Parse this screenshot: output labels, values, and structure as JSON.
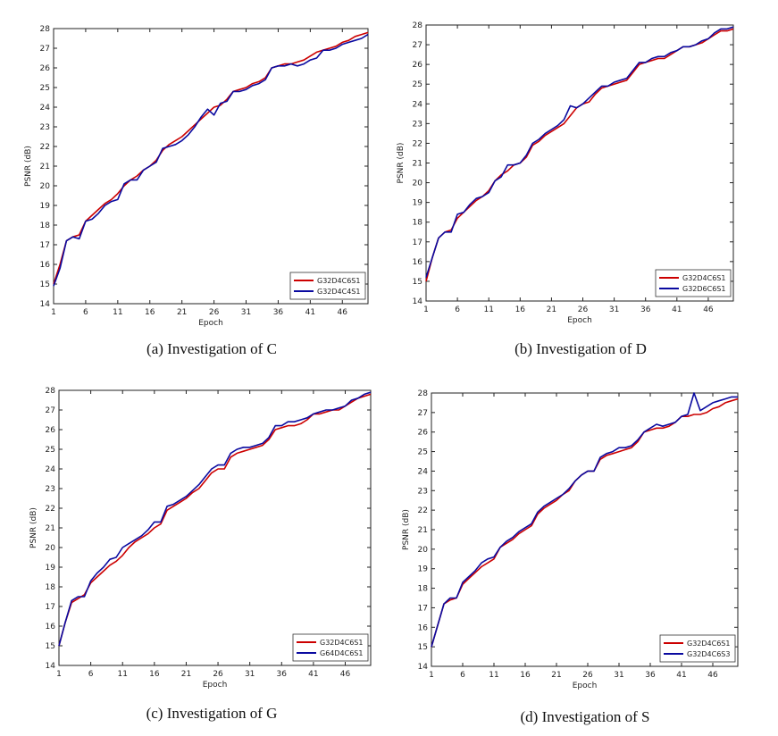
{
  "chart_data": [
    {
      "type": "line",
      "caption": "(a) Investigation of C",
      "xlabel": "Epoch",
      "ylabel": "PSNR (dB)",
      "xlim": [
        1,
        50
      ],
      "ylim": [
        14,
        28
      ],
      "xticks": [
        1,
        6,
        11,
        16,
        21,
        26,
        31,
        36,
        41,
        46
      ],
      "yticks": [
        14,
        15,
        16,
        17,
        18,
        19,
        20,
        21,
        22,
        23,
        24,
        25,
        26,
        27,
        28
      ],
      "legend_position": "bottom-right",
      "series": [
        {
          "name": "G32D4C6S1",
          "color": "#cc0000",
          "x": [
            1,
            2,
            3,
            4,
            5,
            6,
            7,
            8,
            9,
            10,
            11,
            12,
            13,
            14,
            15,
            16,
            17,
            18,
            19,
            20,
            21,
            22,
            23,
            24,
            25,
            26,
            27,
            28,
            29,
            30,
            31,
            32,
            33,
            34,
            35,
            36,
            37,
            38,
            39,
            40,
            41,
            42,
            43,
            44,
            45,
            46,
            47,
            48,
            49,
            50
          ],
          "y": [
            15.0,
            16.0,
            17.2,
            17.4,
            17.5,
            18.2,
            18.5,
            18.8,
            19.1,
            19.3,
            19.6,
            20.0,
            20.3,
            20.5,
            20.8,
            21.0,
            21.3,
            21.8,
            22.1,
            22.3,
            22.5,
            22.8,
            23.1,
            23.4,
            23.7,
            24.0,
            24.1,
            24.4,
            24.8,
            24.9,
            25.0,
            25.2,
            25.3,
            25.5,
            26.0,
            26.1,
            26.2,
            26.2,
            26.3,
            26.4,
            26.6,
            26.8,
            26.9,
            27.0,
            27.1,
            27.3,
            27.4,
            27.6,
            27.7,
            27.8
          ]
        },
        {
          "name": "G32D4C4S1",
          "color": "#0a0aa0",
          "x": [
            1,
            2,
            3,
            4,
            5,
            6,
            7,
            8,
            9,
            10,
            11,
            12,
            13,
            14,
            15,
            16,
            17,
            18,
            19,
            20,
            21,
            22,
            23,
            24,
            25,
            26,
            27,
            28,
            29,
            30,
            31,
            32,
            33,
            34,
            35,
            36,
            37,
            38,
            39,
            40,
            41,
            42,
            43,
            44,
            45,
            46,
            47,
            48,
            49,
            50
          ],
          "y": [
            14.9,
            15.8,
            17.2,
            17.4,
            17.3,
            18.2,
            18.3,
            18.6,
            19.0,
            19.2,
            19.3,
            20.1,
            20.3,
            20.3,
            20.8,
            21.0,
            21.2,
            21.9,
            22.0,
            22.1,
            22.3,
            22.6,
            23.0,
            23.5,
            23.9,
            23.6,
            24.2,
            24.3,
            24.8,
            24.8,
            24.9,
            25.1,
            25.2,
            25.4,
            26.0,
            26.1,
            26.1,
            26.2,
            26.1,
            26.2,
            26.4,
            26.5,
            26.9,
            26.9,
            27.0,
            27.2,
            27.3,
            27.4,
            27.5,
            27.7
          ]
        }
      ]
    },
    {
      "type": "line",
      "caption": "(b) Investigation of D",
      "xlabel": "Epoch",
      "ylabel": "PSNR (dB)",
      "xlim": [
        1,
        50
      ],
      "ylim": [
        14,
        28
      ],
      "xticks": [
        1,
        6,
        11,
        16,
        21,
        26,
        31,
        36,
        41,
        46
      ],
      "yticks": [
        14,
        15,
        16,
        17,
        18,
        19,
        20,
        21,
        22,
        23,
        24,
        25,
        26,
        27,
        28
      ],
      "legend_position": "bottom-right",
      "series": [
        {
          "name": "G32D4C6S1",
          "color": "#cc0000",
          "x": [
            1,
            2,
            3,
            4,
            5,
            6,
            7,
            8,
            9,
            10,
            11,
            12,
            13,
            14,
            15,
            16,
            17,
            18,
            19,
            20,
            21,
            22,
            23,
            24,
            25,
            26,
            27,
            28,
            29,
            30,
            31,
            32,
            33,
            34,
            35,
            36,
            37,
            38,
            39,
            40,
            41,
            42,
            43,
            44,
            45,
            46,
            47,
            48,
            49,
            50
          ],
          "y": [
            15.0,
            16.2,
            17.2,
            17.5,
            17.6,
            18.2,
            18.5,
            18.8,
            19.1,
            19.3,
            19.6,
            20.1,
            20.4,
            20.6,
            20.9,
            21.0,
            21.3,
            21.9,
            22.1,
            22.4,
            22.6,
            22.8,
            23.0,
            23.4,
            23.8,
            24.0,
            24.1,
            24.5,
            24.8,
            24.9,
            25.0,
            25.1,
            25.2,
            25.6,
            26.0,
            26.1,
            26.2,
            26.3,
            26.3,
            26.5,
            26.7,
            26.9,
            26.9,
            27.0,
            27.1,
            27.3,
            27.5,
            27.7,
            27.7,
            27.8
          ]
        },
        {
          "name": "G32D6C6S1",
          "color": "#0a0aa0",
          "x": [
            1,
            2,
            3,
            4,
            5,
            6,
            7,
            8,
            9,
            10,
            11,
            12,
            13,
            14,
            15,
            16,
            17,
            18,
            19,
            20,
            21,
            22,
            23,
            24,
            25,
            26,
            27,
            28,
            29,
            30,
            31,
            32,
            33,
            34,
            35,
            36,
            37,
            38,
            39,
            40,
            41,
            42,
            43,
            44,
            45,
            46,
            47,
            48,
            49,
            50
          ],
          "y": [
            15.2,
            16.2,
            17.2,
            17.5,
            17.5,
            18.4,
            18.5,
            18.9,
            19.2,
            19.3,
            19.5,
            20.1,
            20.3,
            20.9,
            20.9,
            21.0,
            21.4,
            22.0,
            22.2,
            22.5,
            22.7,
            22.9,
            23.2,
            23.9,
            23.8,
            24.0,
            24.3,
            24.6,
            24.9,
            24.9,
            25.1,
            25.2,
            25.3,
            25.7,
            26.1,
            26.1,
            26.3,
            26.4,
            26.4,
            26.6,
            26.7,
            26.9,
            26.9,
            27.0,
            27.2,
            27.3,
            27.6,
            27.8,
            27.8,
            27.9
          ]
        }
      ]
    },
    {
      "type": "line",
      "caption": "(c) Investigation of G",
      "xlabel": "Epoch",
      "ylabel": "PSNR (dB)",
      "xlim": [
        1,
        50
      ],
      "ylim": [
        14,
        28
      ],
      "xticks": [
        1,
        6,
        11,
        16,
        21,
        26,
        31,
        36,
        41,
        46
      ],
      "yticks": [
        14,
        15,
        16,
        17,
        18,
        19,
        20,
        21,
        22,
        23,
        24,
        25,
        26,
        27,
        28
      ],
      "legend_position": "bottom-right",
      "series": [
        {
          "name": "G32D4C6S1",
          "color": "#cc0000",
          "x": [
            1,
            2,
            3,
            4,
            5,
            6,
            7,
            8,
            9,
            10,
            11,
            12,
            13,
            14,
            15,
            16,
            17,
            18,
            19,
            20,
            21,
            22,
            23,
            24,
            25,
            26,
            27,
            28,
            29,
            30,
            31,
            32,
            33,
            34,
            35,
            36,
            37,
            38,
            39,
            40,
            41,
            42,
            43,
            44,
            45,
            46,
            47,
            48,
            49,
            50
          ],
          "y": [
            15.0,
            16.2,
            17.2,
            17.4,
            17.6,
            18.2,
            18.5,
            18.8,
            19.1,
            19.3,
            19.6,
            20.0,
            20.3,
            20.5,
            20.7,
            21.0,
            21.2,
            21.9,
            22.1,
            22.3,
            22.5,
            22.8,
            23.0,
            23.4,
            23.8,
            24.0,
            24.0,
            24.6,
            24.8,
            24.9,
            25.0,
            25.1,
            25.2,
            25.5,
            26.0,
            26.1,
            26.2,
            26.2,
            26.3,
            26.5,
            26.8,
            26.8,
            26.9,
            27.0,
            27.0,
            27.2,
            27.4,
            27.6,
            27.7,
            27.8
          ]
        },
        {
          "name": "G64D4C6S1",
          "color": "#0a0aa0",
          "x": [
            1,
            2,
            3,
            4,
            5,
            6,
            7,
            8,
            9,
            10,
            11,
            12,
            13,
            14,
            15,
            16,
            17,
            18,
            19,
            20,
            21,
            22,
            23,
            24,
            25,
            26,
            27,
            28,
            29,
            30,
            31,
            32,
            33,
            34,
            35,
            36,
            37,
            38,
            39,
            40,
            41,
            42,
            43,
            44,
            45,
            46,
            47,
            48,
            49,
            50
          ],
          "y": [
            15.0,
            16.2,
            17.3,
            17.5,
            17.5,
            18.3,
            18.7,
            19.0,
            19.4,
            19.5,
            20.0,
            20.2,
            20.4,
            20.6,
            20.9,
            21.3,
            21.3,
            22.1,
            22.2,
            22.4,
            22.6,
            22.9,
            23.2,
            23.6,
            24.0,
            24.2,
            24.2,
            24.8,
            25.0,
            25.1,
            25.1,
            25.2,
            25.3,
            25.6,
            26.2,
            26.2,
            26.4,
            26.4,
            26.5,
            26.6,
            26.8,
            26.9,
            27.0,
            27.0,
            27.1,
            27.2,
            27.5,
            27.6,
            27.8,
            27.9
          ]
        }
      ]
    },
    {
      "type": "line",
      "caption": "(d) Investigation of S",
      "xlabel": "Epoch",
      "ylabel": "PSNR (dB)",
      "xlim": [
        1,
        50
      ],
      "ylim": [
        14,
        28
      ],
      "xticks": [
        1,
        6,
        11,
        16,
        21,
        26,
        31,
        36,
        41,
        46
      ],
      "yticks": [
        14,
        15,
        16,
        17,
        18,
        19,
        20,
        21,
        22,
        23,
        24,
        25,
        26,
        27,
        28
      ],
      "legend_position": "bottom-right",
      "series": [
        {
          "name": "G32D4C6S1",
          "color": "#cc0000",
          "x": [
            1,
            2,
            3,
            4,
            5,
            6,
            7,
            8,
            9,
            10,
            11,
            12,
            13,
            14,
            15,
            16,
            17,
            18,
            19,
            20,
            21,
            22,
            23,
            24,
            25,
            26,
            27,
            28,
            29,
            30,
            31,
            32,
            33,
            34,
            35,
            36,
            37,
            38,
            39,
            40,
            41,
            42,
            43,
            44,
            45,
            46,
            47,
            48,
            49,
            50
          ],
          "y": [
            15.0,
            16.1,
            17.2,
            17.4,
            17.5,
            18.2,
            18.5,
            18.8,
            19.1,
            19.3,
            19.5,
            20.1,
            20.3,
            20.5,
            20.8,
            21.0,
            21.2,
            21.8,
            22.1,
            22.3,
            22.5,
            22.8,
            23.0,
            23.5,
            23.8,
            24.0,
            24.0,
            24.6,
            24.8,
            24.9,
            25.0,
            25.1,
            25.2,
            25.5,
            26.0,
            26.1,
            26.2,
            26.2,
            26.3,
            26.5,
            26.8,
            26.8,
            26.9,
            26.9,
            27.0,
            27.2,
            27.3,
            27.5,
            27.6,
            27.7
          ]
        },
        {
          "name": "G32D4C6S3",
          "color": "#0a0aa0",
          "x": [
            1,
            2,
            3,
            4,
            5,
            6,
            7,
            8,
            9,
            10,
            11,
            12,
            13,
            14,
            15,
            16,
            17,
            18,
            19,
            20,
            21,
            22,
            23,
            24,
            25,
            26,
            27,
            28,
            29,
            30,
            31,
            32,
            33,
            34,
            35,
            36,
            37,
            38,
            39,
            40,
            41,
            42,
            43,
            44,
            45,
            46,
            47,
            48,
            49,
            50
          ],
          "y": [
            15.0,
            16.1,
            17.2,
            17.5,
            17.5,
            18.3,
            18.6,
            18.9,
            19.3,
            19.5,
            19.6,
            20.1,
            20.4,
            20.6,
            20.9,
            21.1,
            21.3,
            21.9,
            22.2,
            22.4,
            22.6,
            22.8,
            23.1,
            23.5,
            23.8,
            24.0,
            24.0,
            24.7,
            24.9,
            25.0,
            25.2,
            25.2,
            25.3,
            25.6,
            26.0,
            26.2,
            26.4,
            26.3,
            26.4,
            26.5,
            26.8,
            26.9,
            28.0,
            27.1,
            27.3,
            27.5,
            27.6,
            27.7,
            27.8,
            27.8
          ]
        }
      ]
    }
  ]
}
